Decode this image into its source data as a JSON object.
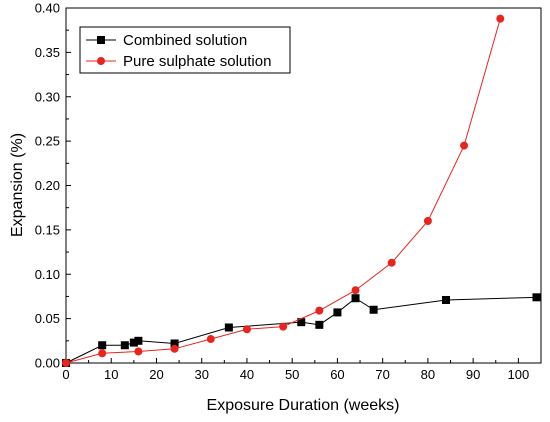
{
  "chart_data": {
    "type": "line",
    "xlabel": "Exposure Duration (weeks)",
    "ylabel": "Expansion (%)",
    "xlim": [
      0,
      105
    ],
    "ylim": [
      0,
      0.4
    ],
    "x_ticks": [
      0,
      10,
      20,
      30,
      40,
      50,
      60,
      70,
      80,
      90,
      100
    ],
    "x_tick_labels": [
      "0",
      "10",
      "20",
      "30",
      "40",
      "50",
      "60",
      "70",
      "80",
      "90",
      "100"
    ],
    "y_ticks": [
      0,
      0.05,
      0.1,
      0.15,
      0.2,
      0.25,
      0.3,
      0.35,
      0.4
    ],
    "y_tick_labels": [
      "0.00",
      "0.05",
      "0.10",
      "0.15",
      "0.20",
      "0.25",
      "0.30",
      "0.35",
      "0.40"
    ],
    "grid": false,
    "legend_position": "top-left",
    "series": [
      {
        "name": "Combined solution",
        "color": "#000000",
        "marker": "square",
        "x": [
          0,
          8,
          13,
          15,
          16,
          24,
          36,
          52,
          56,
          60,
          64,
          68,
          84,
          104
        ],
        "y": [
          0.0,
          0.02,
          0.02,
          0.023,
          0.025,
          0.022,
          0.04,
          0.046,
          0.043,
          0.057,
          0.073,
          0.06,
          0.071,
          0.074
        ]
      },
      {
        "name": "Pure sulphate solution",
        "color": "#e8241e",
        "marker": "circle",
        "x": [
          0,
          8,
          16,
          24,
          32,
          40,
          48,
          56,
          64,
          72,
          80,
          88,
          96
        ],
        "y": [
          0.0,
          0.011,
          0.013,
          0.016,
          0.027,
          0.038,
          0.041,
          0.059,
          0.082,
          0.113,
          0.16,
          0.245,
          0.388
        ]
      }
    ]
  }
}
